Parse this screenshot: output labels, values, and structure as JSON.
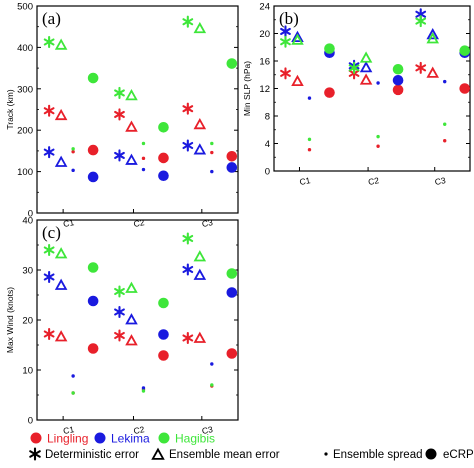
{
  "chart_data": [
    {
      "type": "scatter",
      "panel_label": "(a)",
      "ylabel": "Track (km)",
      "categories": [
        "C1",
        "C2",
        "C3"
      ],
      "ylim": [
        0,
        500
      ],
      "yticks": [
        0,
        100,
        200,
        300,
        400,
        500
      ],
      "series": [
        {
          "name": "Lingling",
          "deterministic_error": [
            247,
            238,
            252
          ],
          "ensemble_mean_error": [
            235,
            207,
            213
          ],
          "ensemble_spread": [
            148,
            132,
            146
          ],
          "ecrps": [
            152,
            133,
            137
          ]
        },
        {
          "name": "Lekima",
          "deterministic_error": [
            147,
            139,
            163
          ],
          "ensemble_mean_error": [
            122,
            127,
            152
          ],
          "ensemble_spread": [
            103,
            105,
            100
          ],
          "ecrps": [
            87,
            90,
            110
          ]
        },
        {
          "name": "Hagibis",
          "deterministic_error": [
            413,
            290,
            462
          ],
          "ensemble_mean_error": [
            405,
            283,
            445
          ],
          "ensemble_spread": [
            155,
            168,
            168
          ],
          "ecrps": [
            326,
            207,
            361
          ]
        }
      ]
    },
    {
      "type": "scatter",
      "panel_label": "(b)",
      "ylabel": "Min SLP (hPa)",
      "categories": [
        "C1",
        "C2",
        "C3"
      ],
      "ylim": [
        0,
        24
      ],
      "yticks": [
        0,
        4,
        8,
        12,
        16,
        20,
        24
      ],
      "series": [
        {
          "name": "Lingling",
          "deterministic_error": [
            14.2,
            14.2,
            15.0
          ],
          "ensemble_mean_error": [
            13.0,
            13.2,
            14.2
          ],
          "ensemble_spread": [
            3.1,
            3.6,
            4.4
          ],
          "ecrps": [
            11.4,
            11.8,
            12.0
          ]
        },
        {
          "name": "Lekima",
          "deterministic_error": [
            20.3,
            15.3,
            22.8
          ],
          "ensemble_mean_error": [
            19.4,
            15.0,
            19.8
          ],
          "ensemble_spread": [
            10.6,
            12.8,
            13.0
          ],
          "ecrps": [
            17.2,
            13.2,
            17.2
          ]
        },
        {
          "name": "Hagibis",
          "deterministic_error": [
            18.8,
            15.0,
            21.8
          ],
          "ensemble_mean_error": [
            19.0,
            16.4,
            19.2
          ],
          "ensemble_spread": [
            4.6,
            5.0,
            6.8
          ],
          "ecrps": [
            17.8,
            14.8,
            17.5
          ]
        }
      ]
    },
    {
      "type": "scatter",
      "panel_label": "(c)",
      "ylabel": "Max Wind (knots)",
      "categories": [
        "C1",
        "C2",
        "C3"
      ],
      "ylim": [
        0,
        40
      ],
      "yticks": [
        0,
        10,
        20,
        30,
        40
      ],
      "series": [
        {
          "name": "Lingling",
          "deterministic_error": [
            17.2,
            16.9,
            16.4
          ],
          "ensemble_mean_error": [
            16.6,
            15.8,
            16.3
          ],
          "ensemble_spread": [
            5.4,
            6.1,
            6.8
          ],
          "ecrps": [
            14.3,
            12.9,
            13.3
          ]
        },
        {
          "name": "Lekima",
          "deterministic_error": [
            28.6,
            21.6,
            30.1
          ],
          "ensemble_mean_error": [
            26.9,
            20.0,
            28.9
          ],
          "ensemble_spread": [
            8.8,
            6.4,
            11.2
          ],
          "ecrps": [
            23.8,
            17.1,
            25.5
          ]
        },
        {
          "name": "Hagibis",
          "deterministic_error": [
            34.0,
            25.7,
            36.3
          ],
          "ensemble_mean_error": [
            33.2,
            26.3,
            32.6
          ],
          "ensemble_spread": [
            5.4,
            5.8,
            7.0
          ],
          "ecrps": [
            30.5,
            23.4,
            29.3
          ]
        }
      ]
    }
  ],
  "legend": {
    "storms": [
      {
        "name": "Lingling",
        "color": "#e8202a"
      },
      {
        "name": "Lekima",
        "color": "#1a1adf"
      },
      {
        "name": "Hagibis",
        "color": "#3ee63a"
      }
    ],
    "markers": [
      {
        "key": "deterministic_error",
        "label": "Deterministic error",
        "symbol": "asterisk"
      },
      {
        "key": "ensemble_mean_error",
        "label": "Ensemble mean error",
        "symbol": "triangle"
      },
      {
        "key": "ensemble_spread",
        "label": "Ensemble spread",
        "symbol": "small-dot"
      },
      {
        "key": "ecrps",
        "label": "eCRPS",
        "symbol": "large-dot"
      }
    ]
  }
}
